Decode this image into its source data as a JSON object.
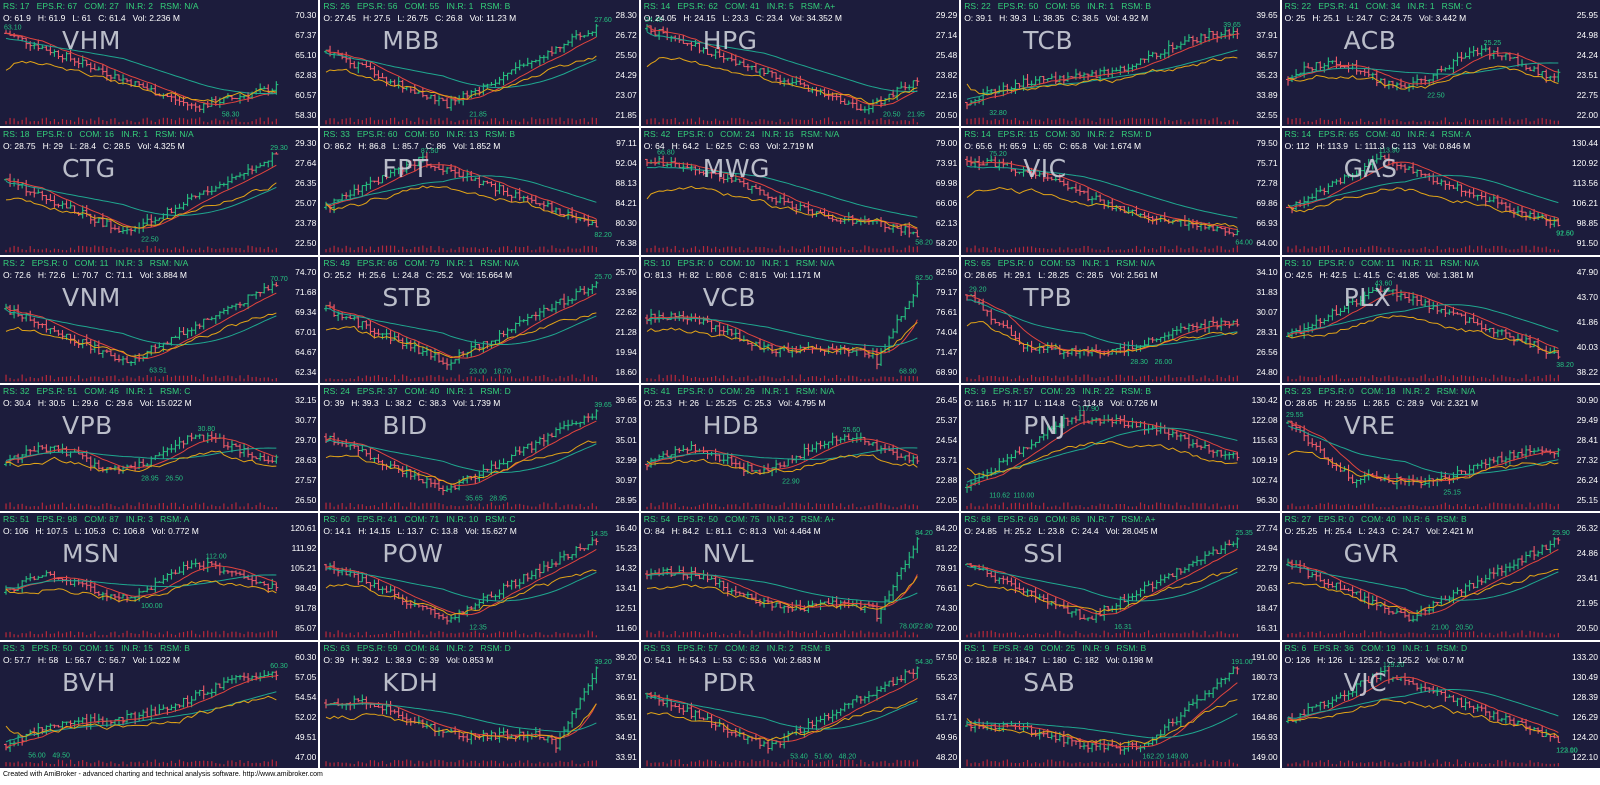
{
  "app": {
    "footer": "Created with AmiBroker - advanced charting and technical analysis software. http://www.amibroker.com"
  },
  "colors": {
    "panel_bg": "#1c1c3c",
    "up_bar": "#26c281",
    "down_bar": "#f25c6a",
    "ma_short": "#e0443e",
    "ma_long": "#1fa78f",
    "rs_line": "#e2a417",
    "header_green": "#34d07a",
    "volume": "#b8283a"
  },
  "chart_data": [
    {
      "type": "ohlc",
      "ticker": "VHM",
      "rs": "17",
      "eps_r": "67",
      "com": "27",
      "in_r": "2",
      "rsm": "N/A",
      "open": "61.9",
      "high": "61.9",
      "low": "61",
      "close": "61.4",
      "vol": "2.236 M",
      "yticks": [
        "70.30",
        "67.37",
        "65.10",
        "62.83",
        "60.57",
        "58.30"
      ],
      "pattern": "down-then-base",
      "marks": [
        "63.10",
        "58.30"
      ]
    },
    {
      "type": "ohlc",
      "ticker": "MBB",
      "rs": "26",
      "eps_r": "56",
      "com": "55",
      "in_r": "1",
      "rsm": "B",
      "open": "27.45",
      "high": "27.5",
      "low": "26.75",
      "close": "26.8",
      "vol": "11.23 M",
      "yticks": [
        "28.30",
        "26.72",
        "25.50",
        "24.29",
        "23.07",
        "21.85"
      ],
      "pattern": "v-recovery",
      "marks": [
        "27.60",
        "21.85"
      ]
    },
    {
      "type": "ohlc",
      "ticker": "HPG",
      "rs": "14",
      "eps_r": "62",
      "com": "41",
      "in_r": "5",
      "rsm": "A+",
      "open": "24.05",
      "high": "24.15",
      "low": "23.3",
      "close": "23.4",
      "vol": "34.352 M",
      "yticks": [
        "29.29",
        "27.14",
        "25.48",
        "23.82",
        "22.16",
        "20.50"
      ],
      "pattern": "downtrend-bottom",
      "marks": [
        "24.40",
        "20.50",
        "21.95"
      ]
    },
    {
      "type": "ohlc",
      "ticker": "TCB",
      "rs": "22",
      "eps_r": "50",
      "com": "56",
      "in_r": "1",
      "rsm": "B",
      "open": "39.1",
      "high": "39.3",
      "low": "38.35",
      "close": "38.5",
      "vol": "4.92 M",
      "yticks": [
        "39.65",
        "37.91",
        "36.57",
        "35.23",
        "33.89",
        "32.55"
      ],
      "pattern": "uptrend",
      "marks": [
        "39.65",
        "32.80"
      ]
    },
    {
      "type": "ohlc",
      "ticker": "ACB",
      "rs": "22",
      "eps_r": "41",
      "com": "34",
      "in_r": "1",
      "rsm": "C",
      "open": "25",
      "high": "25.1",
      "low": "24.7",
      "close": "24.75",
      "vol": "3.442 M",
      "yticks": [
        "25.95",
        "24.98",
        "24.24",
        "23.51",
        "22.75",
        "22.00"
      ],
      "pattern": "sideways",
      "marks": [
        "25.25",
        "22.50"
      ]
    },
    {
      "type": "ohlc",
      "ticker": "CTG",
      "rs": "18",
      "eps_r": "0",
      "com": "16",
      "in_r": "1",
      "rsm": "N/A",
      "open": "28.75",
      "high": "29",
      "low": "28.4",
      "close": "28.5",
      "vol": "4.325 M",
      "yticks": [
        "29.30",
        "27.64",
        "26.35",
        "25.07",
        "23.78",
        "22.50"
      ],
      "pattern": "v-recovery",
      "marks": [
        "29.30",
        "22.50"
      ]
    },
    {
      "type": "ohlc",
      "ticker": "FPT",
      "rs": "33",
      "eps_r": "60",
      "com": "50",
      "in_r": "13",
      "rsm": "B",
      "open": "86.2",
      "high": "86.8",
      "low": "85.7",
      "close": "86",
      "vol": "1.852 M",
      "yticks": [
        "97.11",
        "92.04",
        "88.13",
        "84.21",
        "80.30",
        "76.38"
      ],
      "pattern": "peak-then-down",
      "marks": [
        "87.50",
        "82.20"
      ]
    },
    {
      "type": "ohlc",
      "ticker": "MWG",
      "rs": "42",
      "eps_r": "0",
      "com": "24",
      "in_r": "16",
      "rsm": "N/A",
      "open": "64",
      "high": "64.2",
      "low": "62.5",
      "close": "63",
      "vol": "2.719 M",
      "yticks": [
        "79.00",
        "73.91",
        "69.98",
        "66.06",
        "62.13",
        "58.20"
      ],
      "pattern": "downtrend",
      "marks": [
        "66.80",
        "58.20"
      ]
    },
    {
      "type": "ohlc",
      "ticker": "VIC",
      "rs": "14",
      "eps_r": "15",
      "com": "30",
      "in_r": "2",
      "rsm": "D",
      "open": "65.6",
      "high": "65.9",
      "low": "65",
      "close": "65.8",
      "vol": "1.674 M",
      "yticks": [
        "79.50",
        "75.71",
        "72.78",
        "69.86",
        "66.93",
        "64.00"
      ],
      "pattern": "downtrend",
      "marks": [
        "75.20",
        "64.00"
      ]
    },
    {
      "type": "ohlc",
      "ticker": "GAS",
      "rs": "14",
      "eps_r": "65",
      "com": "40",
      "in_r": "4",
      "rsm": "A",
      "open": "112",
      "high": "113.9",
      "low": "111.3",
      "close": "113",
      "vol": "0.846 M",
      "yticks": [
        "130.44",
        "120.92",
        "113.56",
        "106.21",
        "98.85",
        "91.50"
      ],
      "pattern": "peak-then-down",
      "marks": [
        "113.90",
        "92.60",
        "91.50"
      ]
    },
    {
      "type": "ohlc",
      "ticker": "VNM",
      "rs": "2",
      "eps_r": "0",
      "com": "11",
      "in_r": "3",
      "rsm": "N/A",
      "open": "72.6",
      "high": "72.6",
      "low": "70.7",
      "close": "71.1",
      "vol": "3.884 M",
      "yticks": [
        "74.70",
        "71.68",
        "69.34",
        "67.01",
        "64.67",
        "62.34"
      ],
      "pattern": "v-recovery",
      "marks": [
        "70.70",
        "63.51"
      ]
    },
    {
      "type": "ohlc",
      "ticker": "STB",
      "rs": "49",
      "eps_r": "66",
      "com": "79",
      "in_r": "1",
      "rsm": "N/A",
      "open": "25.2",
      "high": "25.6",
      "low": "24.8",
      "close": "25.2",
      "vol": "15.664 M",
      "yticks": [
        "25.70",
        "23.96",
        "22.62",
        "21.28",
        "19.94",
        "18.60"
      ],
      "pattern": "v-recovery",
      "marks": [
        "25.70",
        "23.00",
        "18.70"
      ]
    },
    {
      "type": "ohlc",
      "ticker": "VCB",
      "rs": "10",
      "eps_r": "0",
      "com": "10",
      "in_r": "1",
      "rsm": "N/A",
      "open": "81.3",
      "high": "82",
      "low": "80.6",
      "close": "81.5",
      "vol": "1.171 M",
      "yticks": [
        "82.50",
        "79.17",
        "76.61",
        "74.04",
        "71.47",
        "68.90"
      ],
      "pattern": "dip-then-spike",
      "marks": [
        "82.50",
        "68.90"
      ]
    },
    {
      "type": "ohlc",
      "ticker": "TPB",
      "rs": "65",
      "eps_r": "0",
      "com": "53",
      "in_r": "1",
      "rsm": "N/A",
      "open": "28.65",
      "high": "29.1",
      "low": "28.25",
      "close": "28.5",
      "vol": "2.561 M",
      "yticks": [
        "34.10",
        "31.83",
        "30.07",
        "28.31",
        "26.56",
        "24.80"
      ],
      "pattern": "drop-then-base",
      "marks": [
        "29.20",
        "28.30",
        "26.00"
      ]
    },
    {
      "type": "ohlc",
      "ticker": "PLX",
      "rs": "10",
      "eps_r": "0",
      "com": "11",
      "in_r": "11",
      "rsm": "N/A",
      "open": "42.5",
      "high": "42.5",
      "low": "41.5",
      "close": "41.85",
      "vol": "1.381 M",
      "yticks": [
        "47.90",
        "43.70",
        "41.86",
        "40.03",
        "38.22"
      ],
      "pattern": "peak-then-down",
      "marks": [
        "43.60",
        "38.20"
      ]
    },
    {
      "type": "ohlc",
      "ticker": "VPB",
      "rs": "32",
      "eps_r": "51",
      "com": "46",
      "in_r": "1",
      "rsm": "C",
      "open": "30.4",
      "high": "30.5",
      "low": "29.6",
      "close": "29.6",
      "vol": "15.022 M",
      "yticks": [
        "32.15",
        "30.77",
        "29.70",
        "28.63",
        "27.57",
        "26.50"
      ],
      "pattern": "sideways",
      "marks": [
        "30.80",
        "28.95",
        "26.50"
      ]
    },
    {
      "type": "ohlc",
      "ticker": "BID",
      "rs": "24",
      "eps_r": "37",
      "com": "40",
      "in_r": "1",
      "rsm": "D",
      "open": "39",
      "high": "39.3",
      "low": "38.2",
      "close": "38.3",
      "vol": "1.739 M",
      "yticks": [
        "39.65",
        "37.03",
        "35.01",
        "32.99",
        "30.97",
        "28.95"
      ],
      "pattern": "v-recovery",
      "marks": [
        "39.65",
        "35.65",
        "28.95"
      ]
    },
    {
      "type": "ohlc",
      "ticker": "HDB",
      "rs": "41",
      "eps_r": "0",
      "com": "26",
      "in_r": "1",
      "rsm": "N/A",
      "open": "25.3",
      "high": "26",
      "low": "25.25",
      "close": "25.3",
      "vol": "4.795 M",
      "yticks": [
        "26.45",
        "25.37",
        "24.54",
        "23.71",
        "22.88",
        "22.05"
      ],
      "pattern": "sideways",
      "marks": [
        "25.60",
        "22.90"
      ]
    },
    {
      "type": "ohlc",
      "ticker": "PNJ",
      "rs": "9",
      "eps_r": "57",
      "com": "23",
      "in_r": "22",
      "rsm": "B",
      "open": "116.5",
      "high": "117",
      "low": "114.8",
      "close": "114.8",
      "vol": "0.726 M",
      "yticks": [
        "130.42",
        "122.08",
        "115.63",
        "109.19",
        "102.74",
        "96.30"
      ],
      "pattern": "rise-then-flat",
      "marks": [
        "117.90",
        "110.62",
        "110.00"
      ]
    },
    {
      "type": "ohlc",
      "ticker": "VRE",
      "rs": "23",
      "eps_r": "0",
      "com": "18",
      "in_r": "2",
      "rsm": "N/A",
      "open": "28.65",
      "high": "29.55",
      "low": "28.5",
      "close": "28.9",
      "vol": "2.321 M",
      "yticks": [
        "30.90",
        "29.49",
        "28.41",
        "27.32",
        "26.24",
        "25.15"
      ],
      "pattern": "drop-then-base",
      "marks": [
        "29.55",
        "25.15"
      ]
    },
    {
      "type": "ohlc",
      "ticker": "MSN",
      "rs": "51",
      "eps_r": "98",
      "com": "87",
      "in_r": "3",
      "rsm": "A",
      "open": "106",
      "high": "107.5",
      "low": "105.3",
      "close": "106.8",
      "vol": "0.772 M",
      "yticks": [
        "120.61",
        "111.92",
        "105.21",
        "98.49",
        "91.78",
        "85.07"
      ],
      "pattern": "sideways",
      "marks": [
        "112.00",
        "100.00"
      ]
    },
    {
      "type": "ohlc",
      "ticker": "POW",
      "rs": "60",
      "eps_r": "41",
      "com": "71",
      "in_r": "10",
      "rsm": "C",
      "open": "14.1",
      "high": "14.15",
      "low": "13.7",
      "close": "13.8",
      "vol": "15.627 M",
      "yticks": [
        "16.40",
        "15.23",
        "14.32",
        "13.41",
        "12.51",
        "11.60"
      ],
      "pattern": "v-recovery",
      "marks": [
        "14.35",
        "12.35"
      ]
    },
    {
      "type": "ohlc",
      "ticker": "NVL",
      "rs": "54",
      "eps_r": "50",
      "com": "75",
      "in_r": "2",
      "rsm": "A+",
      "open": "84",
      "high": "84.2",
      "low": "81.1",
      "close": "81.3",
      "vol": "4.464 M",
      "yticks": [
        "84.20",
        "81.22",
        "78.91",
        "76.61",
        "74.30",
        "72.00"
      ],
      "pattern": "dip-then-spike",
      "marks": [
        "84.20",
        "78.00",
        "72.80"
      ]
    },
    {
      "type": "ohlc",
      "ticker": "SSI",
      "rs": "68",
      "eps_r": "69",
      "com": "86",
      "in_r": "7",
      "rsm": "A+",
      "open": "24.85",
      "high": "25.2",
      "low": "23.8",
      "close": "24.4",
      "vol": "28.045 M",
      "yticks": [
        "27.74",
        "24.94",
        "22.79",
        "20.63",
        "18.47",
        "16.31"
      ],
      "pattern": "v-recovery",
      "marks": [
        "25.35",
        "16.31"
      ]
    },
    {
      "type": "ohlc",
      "ticker": "GVR",
      "rs": "27",
      "eps_r": "0",
      "com": "40",
      "in_r": "6",
      "rsm": "B",
      "open": "25.25",
      "high": "25.4",
      "low": "24.3",
      "close": "24.7",
      "vol": "2.421 M",
      "yticks": [
        "26.32",
        "24.86",
        "23.41",
        "21.95",
        "20.50"
      ],
      "pattern": "v-recovery",
      "marks": [
        "25.90",
        "21.00",
        "20.50"
      ]
    },
    {
      "type": "ohlc",
      "ticker": "BVH",
      "rs": "3",
      "eps_r": "50",
      "com": "15",
      "in_r": "15",
      "rsm": "B",
      "open": "57.7",
      "high": "58",
      "low": "56.7",
      "close": "56.7",
      "vol": "1.022 M",
      "yticks": [
        "60.30",
        "57.05",
        "54.54",
        "52.02",
        "49.51",
        "47.00"
      ],
      "pattern": "uptrend",
      "marks": [
        "60.30",
        "56.00",
        "49.50"
      ]
    },
    {
      "type": "ohlc",
      "ticker": "KDH",
      "rs": "63",
      "eps_r": "59",
      "com": "84",
      "in_r": "2",
      "rsm": "D",
      "open": "39",
      "high": "39.2",
      "low": "38.9",
      "close": "39",
      "vol": "0.853 M",
      "yticks": [
        "39.20",
        "37.91",
        "36.91",
        "35.91",
        "34.91",
        "33.91"
      ],
      "pattern": "dip-then-spike",
      "marks": [
        "39.20"
      ]
    },
    {
      "type": "ohlc",
      "ticker": "PDR",
      "rs": "53",
      "eps_r": "57",
      "com": "82",
      "in_r": "2",
      "rsm": "B",
      "open": "54.1",
      "high": "54.3",
      "low": "53",
      "close": "53.6",
      "vol": "2.683 M",
      "yticks": [
        "57.50",
        "55.23",
        "53.47",
        "51.71",
        "49.96",
        "48.20"
      ],
      "pattern": "v-recovery",
      "marks": [
        "54.30",
        "53.40",
        "51.60",
        "48.20"
      ]
    },
    {
      "type": "ohlc",
      "ticker": "SAB",
      "rs": "1",
      "eps_r": "49",
      "com": "25",
      "in_r": "9",
      "rsm": "B",
      "open": "182.8",
      "high": "184.7",
      "low": "180",
      "close": "182",
      "vol": "0.198 M",
      "yticks": [
        "191.00",
        "180.73",
        "172.80",
        "164.86",
        "156.93",
        "149.00"
      ],
      "pattern": "base-then-spike",
      "marks": [
        "191.00",
        "162.20",
        "149.00"
      ]
    },
    {
      "type": "ohlc",
      "ticker": "VJC",
      "rs": "6",
      "eps_r": "36",
      "com": "19",
      "in_r": "1",
      "rsm": "D",
      "open": "126",
      "high": "126",
      "low": "125.2",
      "close": "125.2",
      "vol": "0.7 M",
      "yticks": [
        "133.20",
        "130.49",
        "128.39",
        "126.29",
        "124.20",
        "122.10"
      ],
      "pattern": "peak-then-down",
      "marks": [
        "129.20",
        "123.00",
        "122.10"
      ]
    }
  ]
}
